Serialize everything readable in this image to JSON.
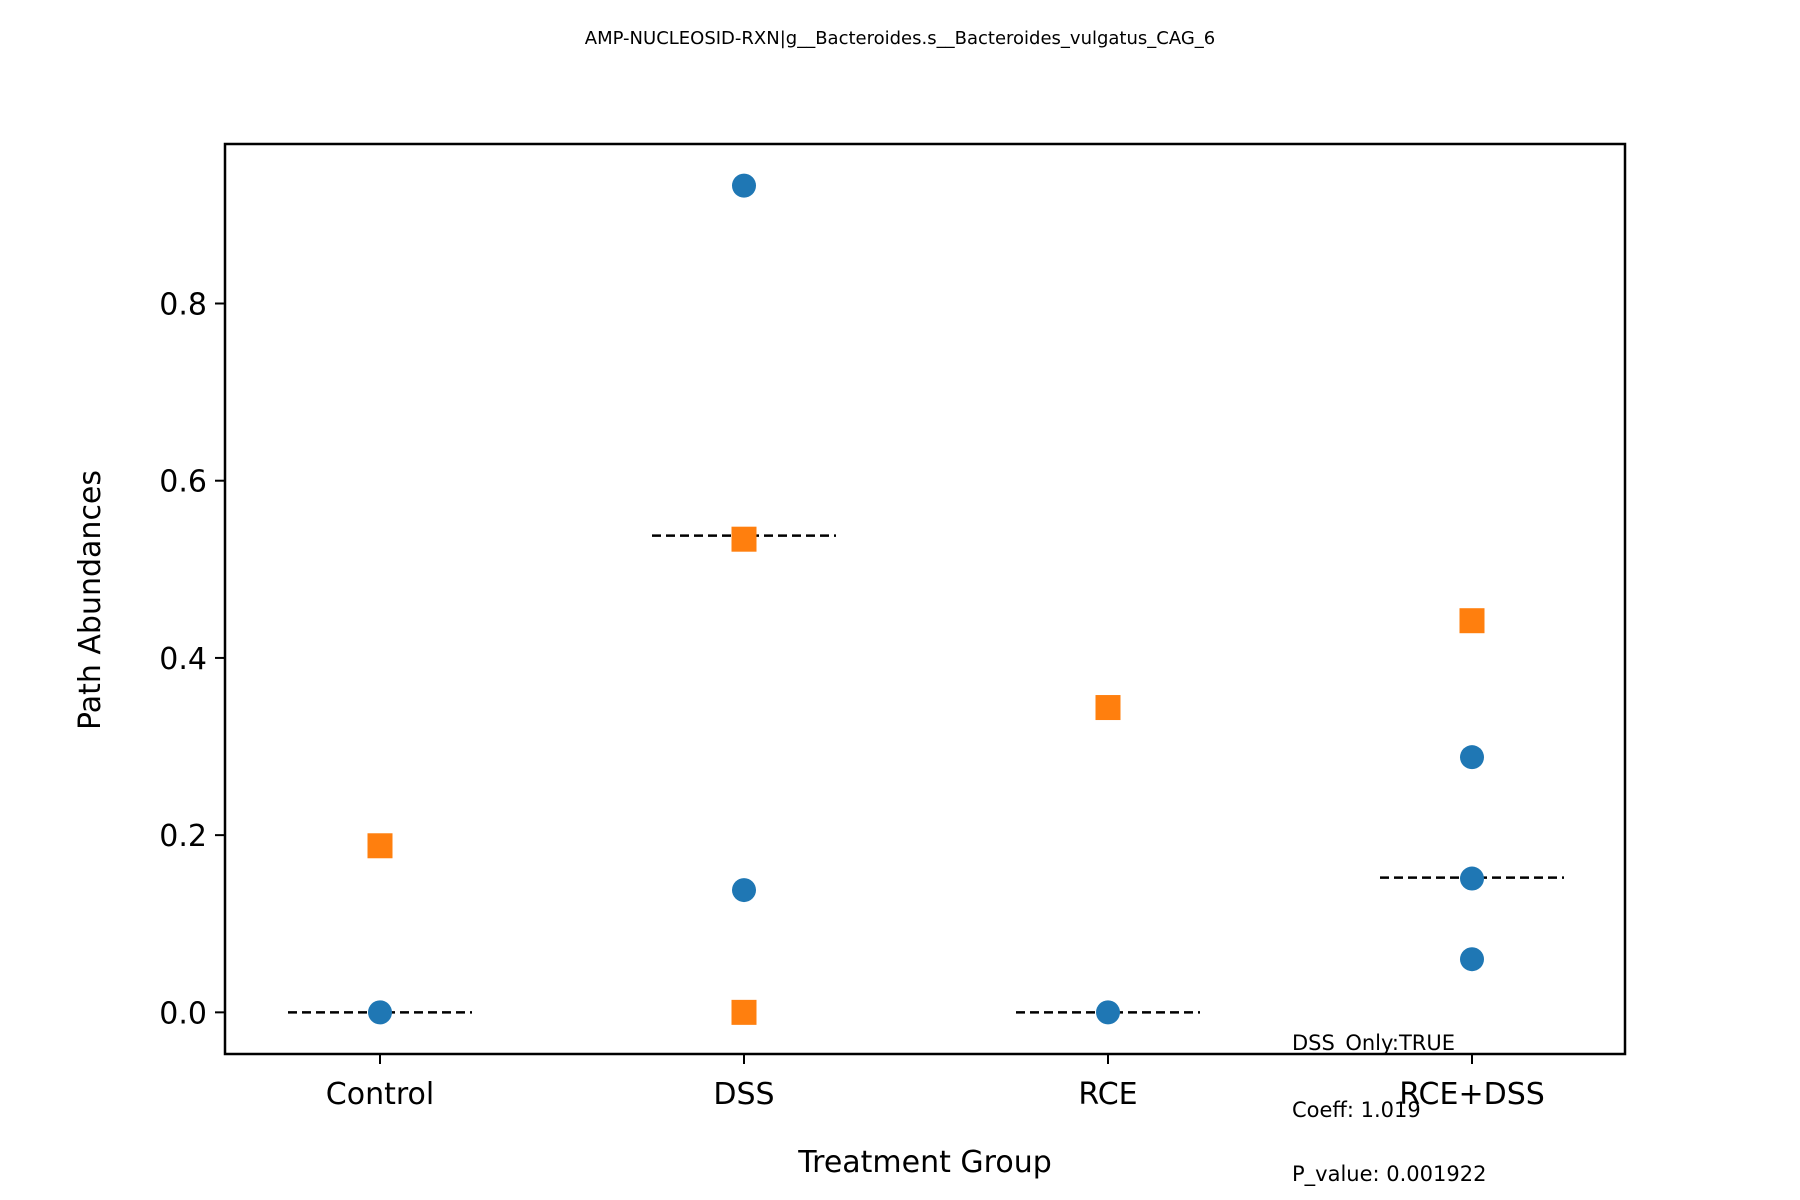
{
  "chart_data": {
    "type": "scatter",
    "title": "AMP-NUCLEOSID-RXN|g__Bacteroides.s__Bacteroides_vulgatus_CAG_6",
    "xlabel": "Treatment Group",
    "ylabel": "Path Abundances",
    "categories": [
      "Control",
      "DSS",
      "RCE",
      "RCE+DSS"
    ],
    "ylim": [
      -0.047,
      0.98
    ],
    "yticks": [
      "0.0",
      "0.2",
      "0.4",
      "0.6",
      "0.8"
    ],
    "grid": false,
    "legend": "none",
    "series": [
      {
        "marker": "circle",
        "color": "#1f77b4",
        "points": [
          {
            "x": "Control",
            "y": 0.0
          },
          {
            "x": "DSS",
            "y": 0.933
          },
          {
            "x": "DSS",
            "y": 0.138
          },
          {
            "x": "RCE",
            "y": 0.0
          },
          {
            "x": "RCE+DSS",
            "y": 0.288
          },
          {
            "x": "RCE+DSS",
            "y": 0.151
          },
          {
            "x": "RCE+DSS",
            "y": 0.06
          }
        ]
      },
      {
        "marker": "square",
        "color": "#ff7f0e",
        "points": [
          {
            "x": "Control",
            "y": 0.188
          },
          {
            "x": "DSS",
            "y": 0.534
          },
          {
            "x": "DSS",
            "y": 0.0
          },
          {
            "x": "RCE",
            "y": 0.344
          },
          {
            "x": "RCE+DSS",
            "y": 0.442
          }
        ]
      }
    ],
    "medians": [
      {
        "x": "Control",
        "y": 0.0
      },
      {
        "x": "DSS",
        "y": 0.538
      },
      {
        "x": "RCE",
        "y": 0.0
      },
      {
        "x": "RCE+DSS",
        "y": 0.152
      }
    ],
    "annotations": [
      "DSS_Only:TRUE",
      "Coeff: 1.019",
      "P_value: 0.001922"
    ]
  }
}
